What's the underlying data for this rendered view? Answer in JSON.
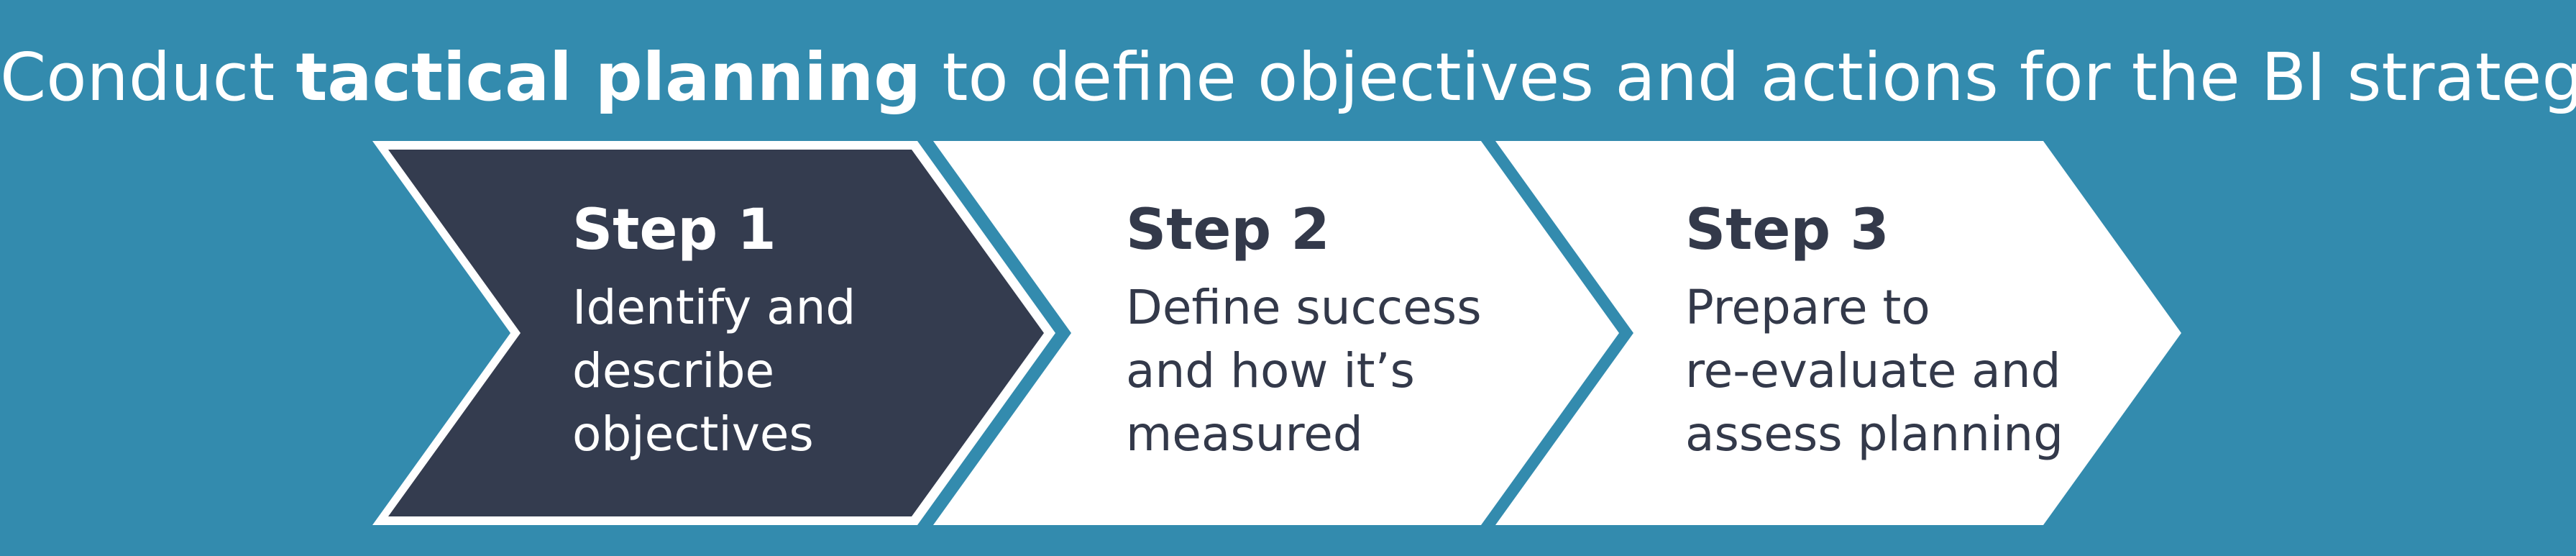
{
  "title": {
    "before": "Conduct ",
    "emphasis": "tactical planning",
    "after": " to define objectives and actions for the BI strategy"
  },
  "steps": [
    {
      "heading": "Step 1",
      "lines": [
        "Identify and",
        "describe",
        "objectives"
      ]
    },
    {
      "heading": "Step 2",
      "lines": [
        "Define success",
        "and how it’s",
        "measured"
      ]
    },
    {
      "heading": "Step 3",
      "lines": [
        "Prepare to",
        "re-evaluate and",
        "assess planning"
      ]
    }
  ],
  "colors": {
    "background": "#338BAE",
    "active_step_fill": "#343C4F",
    "step_fill": "#FFFFFF",
    "dark_text": "#33394A"
  }
}
